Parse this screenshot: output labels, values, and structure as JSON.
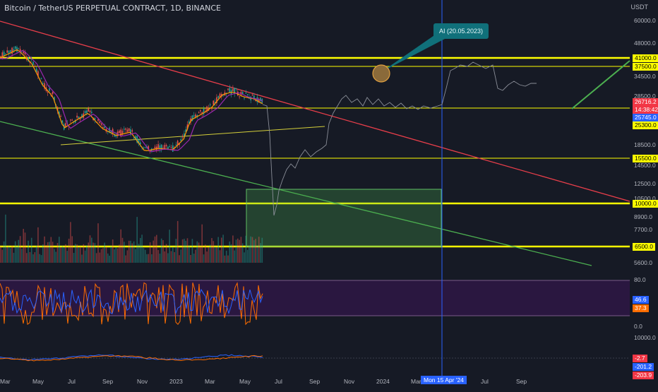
{
  "header": {
    "title": "Bitcoin / TetherUS PERPETUAL CONTRACT, 1D, BINANCE",
    "currency": "USDT"
  },
  "annotation": {
    "text": "AI (20.05.2023)"
  },
  "axis": {
    "price_labels": [
      "60000.0",
      "48000.0",
      "34500.0",
      "28500.0",
      "18500.0",
      "14500.0",
      "12500.0",
      "10500.0",
      "8900.0",
      "7700.0",
      "5600.0"
    ],
    "osc_labels": [
      "80.0",
      "0.0"
    ],
    "macd_labels": [
      "10000.0"
    ],
    "x_labels": [
      "Mar",
      "May",
      "Jul",
      "Sep",
      "Nov",
      "2023",
      "Mar",
      "May",
      "Jul",
      "Sep",
      "Nov",
      "2024",
      "Mar",
      "Jul",
      "Sep"
    ],
    "crosshair_date": "Mon 15 Apr '24"
  },
  "price_tags": [
    {
      "text": "41000.0",
      "bg": "#ffff00",
      "fg": "#000000"
    },
    {
      "text": "37500.0",
      "bg": "#ffff00",
      "fg": "#000000"
    },
    {
      "text": "26716.2",
      "bg": "#f23645",
      "fg": "#ffffff"
    },
    {
      "text": "14:38:42",
      "bg": "#f23645",
      "fg": "#ffffff"
    },
    {
      "text": "25745.0",
      "bg": "#2962ff",
      "fg": "#ffffff"
    },
    {
      "text": "25300.0",
      "bg": "#ffff00",
      "fg": "#000000"
    },
    {
      "text": "15500.0",
      "bg": "#ffff00",
      "fg": "#000000"
    },
    {
      "text": "10000.0",
      "bg": "#ffff00",
      "fg": "#000000"
    },
    {
      "text": "6500.0",
      "bg": "#ffff00",
      "fg": "#000000"
    },
    {
      "text": "46.6",
      "bg": "#2962ff",
      "fg": "#ffffff"
    },
    {
      "text": "37.3",
      "bg": "#ff6d00",
      "fg": "#ffffff"
    },
    {
      "text": "-2.7",
      "bg": "#f23645",
      "fg": "#ffffff"
    },
    {
      "text": "-201.2",
      "bg": "#2962ff",
      "fg": "#ffffff"
    },
    {
      "text": "-203.9",
      "bg": "#f23645",
      "fg": "#ffffff"
    }
  ],
  "colors": {
    "background": "#161a25",
    "level": "#ffff00",
    "resistance": "#e83e4a",
    "support": "#4caf50",
    "crosshair": "#2962ff",
    "osc_zone": "#2a1740"
  }
}
